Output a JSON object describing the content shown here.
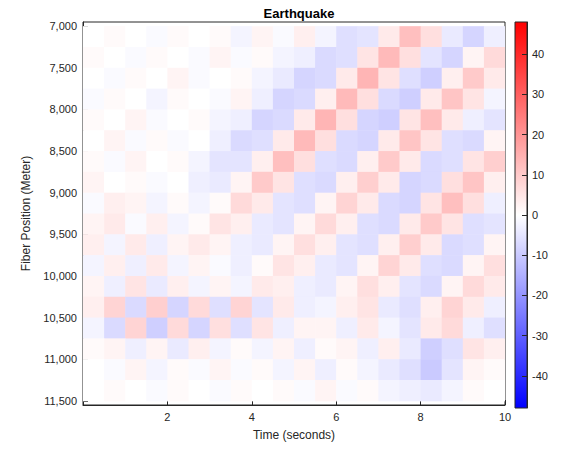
{
  "chart_data": {
    "type": "heatmap",
    "title": "Earthquake",
    "x_label": "Time (seconds)",
    "y_label": "Fiber Position (Meter)",
    "x": [
      0.25,
      0.75,
      1.25,
      1.75,
      2.25,
      2.75,
      3.25,
      3.75,
      4.25,
      4.75,
      5.25,
      5.75,
      6.25,
      6.75,
      7.25,
      7.75,
      8.25,
      8.75,
      9.25,
      9.75
    ],
    "y": [
      7125,
      7375,
      7625,
      7875,
      8125,
      8375,
      8625,
      8875,
      9125,
      9375,
      9625,
      9875,
      10125,
      10375,
      10625,
      10875,
      11125,
      11375
    ],
    "cell_width": 0.5,
    "cell_height": 250,
    "values": [
      [
        0,
        1,
        0,
        -1,
        1,
        0,
        1,
        -2,
        2,
        -1,
        3,
        -2,
        -6,
        -5,
        4,
        12,
        6,
        -4,
        -8,
        -3
      ],
      [
        1,
        0,
        -1,
        1,
        0,
        -1,
        2,
        -1,
        1,
        -2,
        -3,
        -7,
        -6,
        5,
        13,
        6,
        -5,
        -8,
        2,
        7
      ],
      [
        0,
        -1,
        1,
        0,
        2,
        -1,
        0,
        1,
        -2,
        -4,
        -8,
        -7,
        4,
        14,
        5,
        -6,
        -9,
        3,
        10,
        4
      ],
      [
        -1,
        1,
        0,
        -2,
        1,
        0,
        -1,
        2,
        -3,
        -8,
        -7,
        3,
        13,
        6,
        -7,
        -9,
        4,
        11,
        5,
        -2
      ],
      [
        1,
        0,
        2,
        -1,
        0,
        1,
        -2,
        -3,
        -8,
        -7,
        4,
        14,
        6,
        -8,
        -9,
        5,
        12,
        4,
        -3,
        -5
      ],
      [
        0,
        2,
        -1,
        1,
        -1,
        0,
        -3,
        -7,
        -6,
        4,
        13,
        6,
        -7,
        -8,
        4,
        11,
        5,
        -6,
        -7,
        2
      ],
      [
        1,
        -1,
        2,
        0,
        1,
        -2,
        -5,
        -5,
        3,
        12,
        6,
        -6,
        -7,
        3,
        10,
        4,
        -7,
        -6,
        5,
        9
      ],
      [
        2,
        0,
        1,
        -1,
        0,
        -3,
        -4,
        2,
        10,
        5,
        -6,
        -7,
        3,
        9,
        4,
        -8,
        -7,
        6,
        11,
        3
      ],
      [
        -1,
        3,
        2,
        -2,
        1,
        -2,
        1,
        7,
        4,
        -5,
        -6,
        2,
        8,
        4,
        -7,
        -8,
        5,
        12,
        6,
        -3
      ],
      [
        2,
        4,
        -1,
        3,
        -2,
        1,
        5,
        3,
        -4,
        -5,
        2,
        7,
        3,
        -6,
        -7,
        4,
        10,
        5,
        -6,
        -5
      ],
      [
        3,
        -2,
        4,
        -3,
        2,
        4,
        2,
        -3,
        -4,
        2,
        6,
        3,
        -5,
        -6,
        3,
        9,
        4,
        -7,
        -6,
        2
      ],
      [
        -2,
        3,
        -3,
        4,
        -2,
        2,
        -1,
        -3,
        1,
        5,
        3,
        -4,
        -5,
        2,
        8,
        4,
        -6,
        -7,
        2,
        6
      ],
      [
        2,
        -3,
        5,
        -4,
        3,
        -2,
        2,
        -2,
        4,
        3,
        -3,
        -4,
        2,
        6,
        3,
        -5,
        -7,
        2,
        7,
        4
      ],
      [
        3,
        8,
        -7,
        9,
        -8,
        7,
        -6,
        8,
        -5,
        4,
        -3,
        -2,
        3,
        5,
        -4,
        -6,
        3,
        8,
        4,
        -3
      ],
      [
        -2,
        -7,
        8,
        -9,
        7,
        -8,
        6,
        -6,
        5,
        -3,
        2,
        2,
        -3,
        4,
        -2,
        -5,
        4,
        7,
        -3,
        -6
      ],
      [
        1,
        2,
        -3,
        2,
        -4,
        3,
        -2,
        1,
        -2,
        2,
        -3,
        1,
        2,
        -3,
        3,
        -4,
        -9,
        -6,
        5,
        3
      ],
      [
        0,
        -1,
        2,
        -2,
        1,
        -1,
        2,
        -1,
        1,
        -2,
        2,
        -3,
        1,
        -2,
        -4,
        -6,
        -10,
        -5,
        2,
        1
      ],
      [
        0,
        1,
        0,
        -1,
        1,
        0,
        -1,
        1,
        0,
        1,
        -1,
        2,
        -1,
        1,
        -2,
        -3,
        -4,
        -2,
        1,
        0
      ]
    ],
    "xlim": [
      0,
      10
    ],
    "xticks": [
      2,
      4,
      6,
      8,
      10
    ],
    "ylim": [
      6950,
      11550
    ],
    "yticks": [
      7000,
      7500,
      8000,
      8500,
      9000,
      9500,
      10000,
      10500,
      11000,
      11500
    ],
    "grid": false,
    "colorbar": {
      "range": [
        -48,
        48
      ],
      "ticks": [
        -40,
        -30,
        -20,
        -10,
        0,
        10,
        20,
        30,
        40
      ],
      "colors": [
        "#0000ff",
        "#ffffff",
        "#ff0000"
      ]
    }
  }
}
